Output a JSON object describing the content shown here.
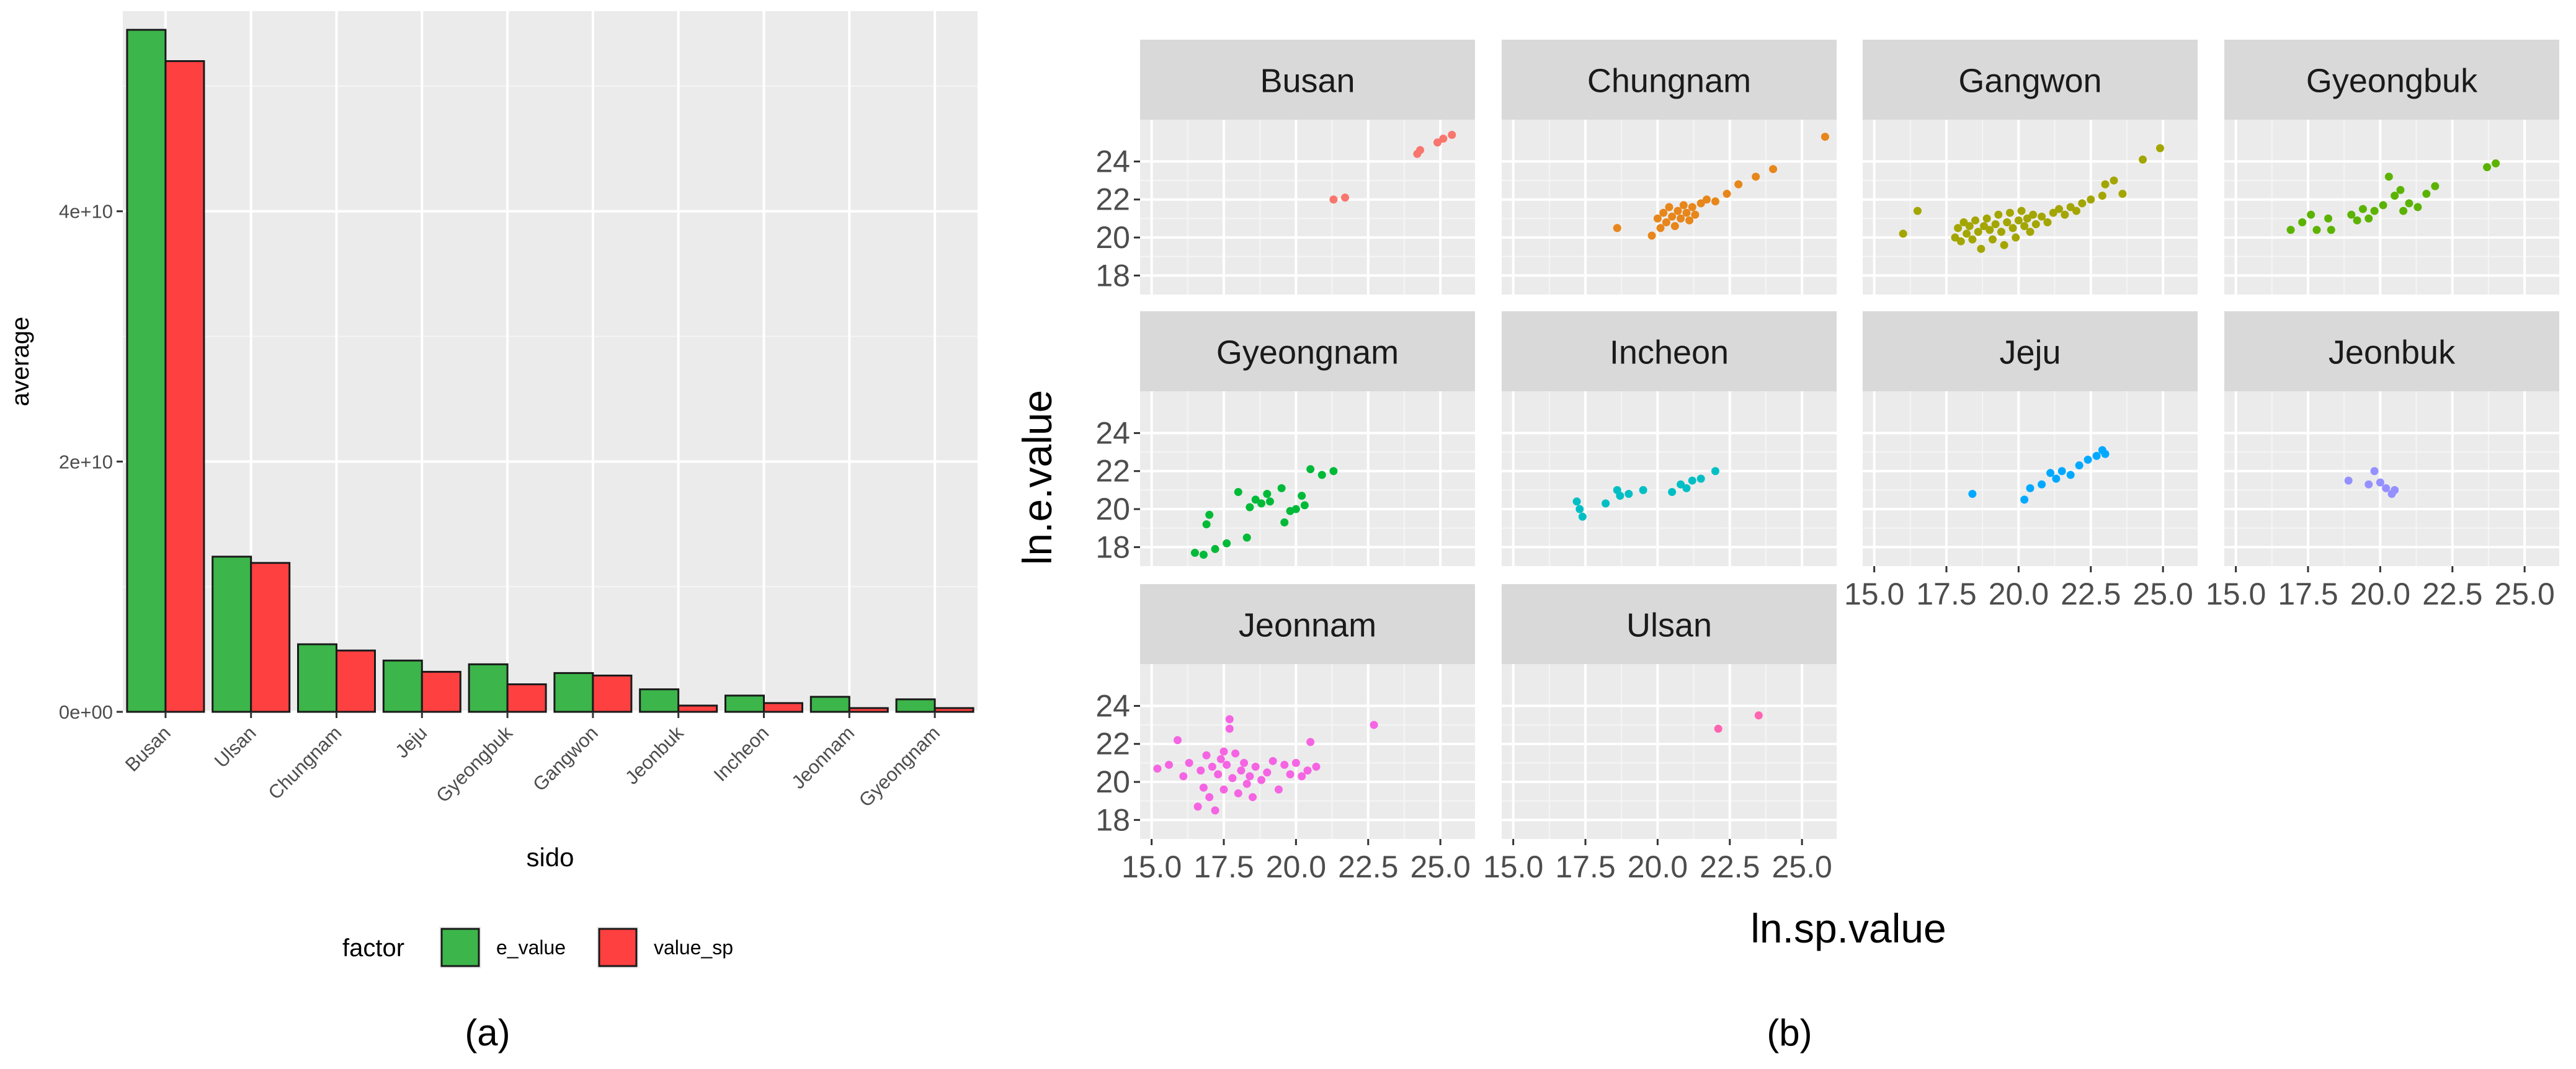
{
  "figure": {
    "panel_a_label": "(a)",
    "panel_b_label": "(b)"
  },
  "chart_data": [
    {
      "type": "bar",
      "xlabel": "sido",
      "ylabel": "average",
      "ylim": [
        0,
        55000000000
      ],
      "y_ticks": [
        0,
        20000000000,
        40000000000
      ],
      "y_tick_labels": [
        "0e+00",
        "2e+10",
        "4e+10"
      ],
      "categories": [
        "Busan",
        "Ulsan",
        "Chungnam",
        "Jeju",
        "Gyeongbuk",
        "Gangwon",
        "Jeonbuk",
        "Incheon",
        "Jeonnam",
        "Gyeongnam"
      ],
      "series": [
        {
          "name": "e_value",
          "color": "#3CB54A",
          "values": [
            54500000000,
            12400000000,
            5400000000,
            4100000000,
            3800000000,
            3100000000,
            1800000000,
            1300000000,
            1200000000,
            1000000000
          ]
        },
        {
          "name": "value_sp",
          "color": "#FF4040",
          "values": [
            52000000000,
            11900000000,
            4900000000,
            3200000000,
            2200000000,
            2900000000,
            500000000,
            700000000,
            300000000,
            300000000
          ]
        }
      ],
      "legend": {
        "title": "factor",
        "position": "bottom"
      },
      "grid": true
    },
    {
      "type": "scatter",
      "xlabel": "ln.sp.value",
      "ylabel": "ln.e.value",
      "xlim": [
        14.6,
        26.2
      ],
      "ylim": [
        17,
        26.2
      ],
      "x_ticks": [
        15,
        17.5,
        20,
        22.5,
        25
      ],
      "x_tick_labels": [
        "15.0",
        "17.5",
        "20.0",
        "22.5",
        "25.0"
      ],
      "y_ticks": [
        18,
        20,
        22,
        24
      ],
      "y_tick_labels": [
        "18",
        "20",
        "22",
        "24"
      ],
      "grid": true,
      "facets": [
        {
          "name": "Busan",
          "color": "#F8766D",
          "points": [
            [
              21.3,
              22.0
            ],
            [
              21.7,
              22.1
            ],
            [
              24.2,
              24.4
            ],
            [
              24.3,
              24.6
            ],
            [
              24.9,
              25.0
            ],
            [
              25.1,
              25.2
            ],
            [
              25.4,
              25.4
            ]
          ]
        },
        {
          "name": "Chungnam",
          "color": "#E7861B",
          "points": [
            [
              18.6,
              20.5
            ],
            [
              19.8,
              20.1
            ],
            [
              20.0,
              21.0
            ],
            [
              20.1,
              20.5
            ],
            [
              20.2,
              21.3
            ],
            [
              20.3,
              20.8
            ],
            [
              20.4,
              21.6
            ],
            [
              20.5,
              21.1
            ],
            [
              20.6,
              20.6
            ],
            [
              20.7,
              21.4
            ],
            [
              20.8,
              21.0
            ],
            [
              20.9,
              21.7
            ],
            [
              21.0,
              21.3
            ],
            [
              21.1,
              20.9
            ],
            [
              21.2,
              21.6
            ],
            [
              21.3,
              21.2
            ],
            [
              21.5,
              21.8
            ],
            [
              21.7,
              22.0
            ],
            [
              22.0,
              21.9
            ],
            [
              22.4,
              22.3
            ],
            [
              22.8,
              22.8
            ],
            [
              23.4,
              23.2
            ],
            [
              24.0,
              23.6
            ],
            [
              25.8,
              25.3
            ]
          ]
        },
        {
          "name": "Gangwon",
          "color": "#A3A500",
          "points": [
            [
              16.0,
              20.2
            ],
            [
              16.5,
              21.4
            ],
            [
              17.8,
              20.0
            ],
            [
              17.9,
              20.5
            ],
            [
              18.0,
              19.8
            ],
            [
              18.1,
              20.8
            ],
            [
              18.2,
              20.2
            ],
            [
              18.3,
              20.6
            ],
            [
              18.4,
              19.9
            ],
            [
              18.5,
              20.9
            ],
            [
              18.6,
              20.3
            ],
            [
              18.7,
              19.4
            ],
            [
              18.8,
              20.6
            ],
            [
              18.9,
              21.0
            ],
            [
              19.0,
              20.4
            ],
            [
              19.1,
              19.9
            ],
            [
              19.2,
              20.7
            ],
            [
              19.3,
              21.2
            ],
            [
              19.4,
              20.3
            ],
            [
              19.5,
              19.6
            ],
            [
              19.6,
              20.8
            ],
            [
              19.7,
              21.3
            ],
            [
              19.8,
              20.5
            ],
            [
              19.9,
              20.0
            ],
            [
              20.0,
              20.9
            ],
            [
              20.1,
              21.4
            ],
            [
              20.2,
              20.6
            ],
            [
              20.3,
              21.0
            ],
            [
              20.4,
              20.3
            ],
            [
              20.5,
              21.2
            ],
            [
              20.6,
              20.7
            ],
            [
              20.8,
              21.1
            ],
            [
              21.0,
              20.8
            ],
            [
              21.2,
              21.3
            ],
            [
              21.4,
              21.5
            ],
            [
              21.6,
              21.2
            ],
            [
              21.8,
              21.6
            ],
            [
              22.0,
              21.4
            ],
            [
              22.2,
              21.8
            ],
            [
              22.5,
              22.0
            ],
            [
              22.9,
              22.2
            ],
            [
              23.0,
              22.8
            ],
            [
              23.3,
              23.0
            ],
            [
              23.6,
              22.3
            ],
            [
              24.3,
              24.1
            ],
            [
              24.9,
              24.7
            ]
          ]
        },
        {
          "name": "Gyeongbuk",
          "color": "#5BB300",
          "points": [
            [
              16.9,
              20.4
            ],
            [
              17.3,
              20.8
            ],
            [
              17.6,
              21.2
            ],
            [
              17.8,
              20.4
            ],
            [
              18.3,
              20.4
            ],
            [
              18.2,
              21.0
            ],
            [
              19.0,
              21.2
            ],
            [
              19.2,
              20.9
            ],
            [
              19.4,
              21.5
            ],
            [
              19.6,
              21.0
            ],
            [
              19.8,
              21.4
            ],
            [
              20.1,
              21.7
            ],
            [
              20.3,
              23.2
            ],
            [
              20.5,
              22.2
            ],
            [
              20.7,
              22.5
            ],
            [
              20.8,
              21.4
            ],
            [
              21.0,
              21.8
            ],
            [
              21.3,
              21.6
            ],
            [
              21.6,
              22.3
            ],
            [
              21.9,
              22.7
            ],
            [
              23.7,
              23.7
            ],
            [
              24.0,
              23.9
            ]
          ]
        },
        {
          "name": "Gyeongnam",
          "color": "#00BA38",
          "points": [
            [
              16.5,
              17.7
            ],
            [
              16.8,
              17.6
            ],
            [
              17.0,
              19.7
            ],
            [
              16.9,
              19.2
            ],
            [
              17.2,
              17.9
            ],
            [
              17.6,
              18.2
            ],
            [
              18.0,
              20.9
            ],
            [
              18.3,
              18.5
            ],
            [
              18.4,
              20.1
            ],
            [
              18.6,
              20.5
            ],
            [
              18.8,
              20.3
            ],
            [
              19.0,
              20.8
            ],
            [
              19.1,
              20.4
            ],
            [
              19.6,
              19.3
            ],
            [
              19.8,
              19.9
            ],
            [
              20.0,
              20.0
            ],
            [
              20.2,
              20.7
            ],
            [
              20.5,
              22.1
            ],
            [
              20.9,
              21.8
            ],
            [
              21.3,
              22.0
            ],
            [
              20.3,
              20.2
            ],
            [
              19.5,
              21.1
            ]
          ]
        },
        {
          "name": "Incheon",
          "color": "#00BFC4",
          "points": [
            [
              17.2,
              20.4
            ],
            [
              17.3,
              20.0
            ],
            [
              17.4,
              19.6
            ],
            [
              18.2,
              20.3
            ],
            [
              18.6,
              21.0
            ],
            [
              18.7,
              20.7
            ],
            [
              19.0,
              20.8
            ],
            [
              19.5,
              21.0
            ],
            [
              20.5,
              20.9
            ],
            [
              20.8,
              21.3
            ],
            [
              21.0,
              21.1
            ],
            [
              21.2,
              21.5
            ],
            [
              21.5,
              21.6
            ],
            [
              22.0,
              22.0
            ]
          ]
        },
        {
          "name": "Jeju",
          "color": "#00A9FF",
          "points": [
            [
              18.4,
              20.8
            ],
            [
              20.2,
              20.5
            ],
            [
              20.4,
              21.1
            ],
            [
              20.8,
              21.3
            ],
            [
              21.1,
              21.9
            ],
            [
              21.3,
              21.6
            ],
            [
              21.5,
              22.0
            ],
            [
              21.8,
              21.8
            ],
            [
              22.1,
              22.3
            ],
            [
              22.4,
              22.6
            ],
            [
              22.7,
              22.8
            ],
            [
              22.9,
              23.1
            ],
            [
              23.0,
              22.9
            ]
          ]
        },
        {
          "name": "Jeonbuk",
          "color": "#9590FF",
          "points": [
            [
              18.9,
              21.5
            ],
            [
              19.6,
              21.3
            ],
            [
              19.8,
              22.0
            ],
            [
              20.0,
              21.4
            ],
            [
              20.2,
              21.1
            ],
            [
              20.4,
              20.8
            ],
            [
              20.5,
              21.0
            ]
          ]
        },
        {
          "name": "Jeonnam",
          "color": "#F564E3",
          "points": [
            [
              15.2,
              20.7
            ],
            [
              15.6,
              20.9
            ],
            [
              15.9,
              22.2
            ],
            [
              16.1,
              20.3
            ],
            [
              16.3,
              21.0
            ],
            [
              16.6,
              18.7
            ],
            [
              16.7,
              20.6
            ],
            [
              16.8,
              19.7
            ],
            [
              16.9,
              21.4
            ],
            [
              17.0,
              19.2
            ],
            [
              17.1,
              20.8
            ],
            [
              17.2,
              18.5
            ],
            [
              17.3,
              20.4
            ],
            [
              17.4,
              21.2
            ],
            [
              17.5,
              19.6
            ],
            [
              17.6,
              20.9
            ],
            [
              17.7,
              22.8
            ],
            [
              17.7,
              23.3
            ],
            [
              17.8,
              20.2
            ],
            [
              17.9,
              21.5
            ],
            [
              18.0,
              19.4
            ],
            [
              18.1,
              20.6
            ],
            [
              18.2,
              21.0
            ],
            [
              18.3,
              19.9
            ],
            [
              18.4,
              20.3
            ],
            [
              18.5,
              19.2
            ],
            [
              18.6,
              20.8
            ],
            [
              18.8,
              20.1
            ],
            [
              19.0,
              20.5
            ],
            [
              19.2,
              21.1
            ],
            [
              19.4,
              19.6
            ],
            [
              19.6,
              20.9
            ],
            [
              19.8,
              20.4
            ],
            [
              20.0,
              21.0
            ],
            [
              20.2,
              20.3
            ],
            [
              20.4,
              20.6
            ],
            [
              20.7,
              20.8
            ],
            [
              22.7,
              23.0
            ],
            [
              20.5,
              22.1
            ],
            [
              17.5,
              21.6
            ]
          ]
        },
        {
          "name": "Ulsan",
          "color": "#FF64B0",
          "points": [
            [
              22.1,
              22.8
            ],
            [
              23.5,
              23.5
            ]
          ]
        }
      ]
    }
  ]
}
